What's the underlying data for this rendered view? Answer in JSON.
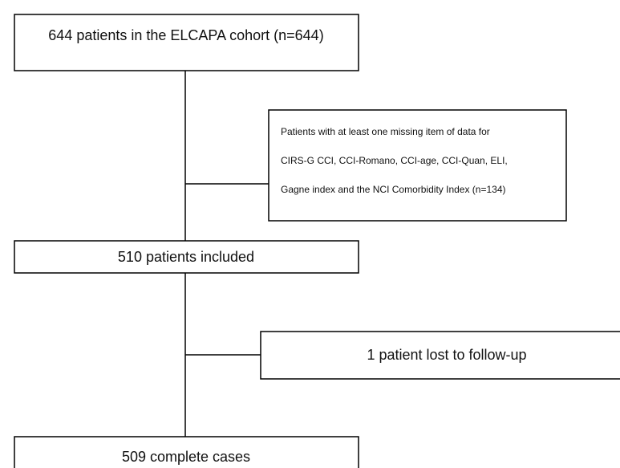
{
  "nodes": [
    {
      "label": "644 patients in the ELCAPA cohort (n=644)"
    },
    {
      "lines": [
        "Patients with at least one missing item of data for",
        "CIRS-G CCI, CCI-Romano, CCI-age, CCI-Quan, ELI,",
        "Gagne index and the NCI Comorbidity Index (n=134)"
      ]
    },
    {
      "label": "510 patients included"
    },
    {
      "label": "1 patient lost to follow-up"
    },
    {
      "label": "509 complete cases"
    }
  ]
}
